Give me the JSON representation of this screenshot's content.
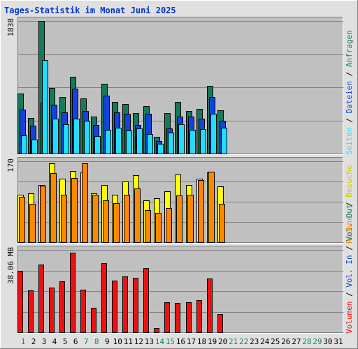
{
  "chart_data": [
    {
      "type": "bar",
      "title": "Tages-Statistik im Monat Juni 2025",
      "x": [
        "1",
        "2",
        "3",
        "4",
        "5",
        "6",
        "7",
        "8",
        "9",
        "10",
        "11",
        "12",
        "13",
        "14",
        "15",
        "16",
        "17",
        "18",
        "19",
        "20",
        "21",
        "22",
        "23",
        "24",
        "25",
        "26",
        "27",
        "28",
        "29",
        "30",
        "31"
      ],
      "weekend_days": [
        "1",
        "7",
        "8",
        "14",
        "15",
        "21",
        "22",
        "28",
        "29"
      ],
      "ylim": [
        0,
        1838
      ],
      "y_tick_label": "1838",
      "series": [
        {
          "name": "Anfragen",
          "color": "#157a5c",
          "values": [
            830,
            490,
            1838,
            910,
            780,
            1060,
            760,
            510,
            970,
            720,
            690,
            560,
            660,
            230,
            560,
            720,
            590,
            620,
            940,
            600,
            0,
            0,
            0,
            0,
            0,
            0,
            0,
            0,
            0,
            0,
            0
          ]
        },
        {
          "name": "Dateien",
          "color": "#1144dd",
          "values": [
            610,
            390,
            710,
            680,
            570,
            900,
            590,
            400,
            800,
            570,
            550,
            400,
            550,
            170,
            350,
            510,
            510,
            480,
            780,
            450,
            0,
            0,
            0,
            0,
            0,
            0,
            0,
            0,
            0,
            0,
            0
          ]
        },
        {
          "name": "Seiten",
          "color": "#22ddff",
          "values": [
            250,
            190,
            1300,
            480,
            410,
            480,
            450,
            240,
            330,
            360,
            320,
            350,
            270,
            140,
            290,
            410,
            330,
            340,
            550,
            360,
            0,
            0,
            0,
            0,
            0,
            0,
            0,
            0,
            0,
            0,
            0
          ]
        }
      ]
    },
    {
      "type": "bar",
      "ylim": [
        0,
        170
      ],
      "y_tick_label": "170",
      "series": [
        {
          "name": "Besuche",
          "color": "#ffff00",
          "values": [
            100,
            102,
            120,
            165,
            134,
            150,
            147,
            102,
            120,
            100,
            128,
            140,
            88,
            92,
            107,
            142,
            120,
            134,
            147,
            117
          ]
        },
        {
          "name": "Rechner",
          "color": "#ff8800",
          "values": [
            95,
            80,
            118,
            145,
            100,
            135,
            165,
            100,
            88,
            82,
            100,
            113,
            67,
            62,
            72,
            98,
            100,
            130,
            148,
            81
          ]
        }
      ]
    },
    {
      "type": "bar",
      "ylim": [
        0,
        38.06
      ],
      "y_tick_label": "38.06 MB",
      "series": [
        {
          "name": "Volumen",
          "color": "#ee1111",
          "values": [
            28.4,
            19.5,
            31.3,
            20.7,
            23.4,
            36.9,
            19.7,
            11.2,
            31.8,
            23.8,
            25.8,
            25.2,
            29.6,
            1.8,
            13.9,
            13.6,
            13.9,
            14.9,
            24.7,
            8.4,
            0,
            0,
            0,
            0,
            0,
            0,
            0,
            0,
            0,
            0,
            0
          ]
        }
      ]
    }
  ],
  "legend": {
    "sep": " / ",
    "top": [
      {
        "label": "Anfragen",
        "color": "#157a5c"
      },
      {
        "label": "Dateien",
        "color": "#1144dd"
      },
      {
        "label": "Seiten",
        "color": "#22ddff"
      }
    ],
    "middle": [
      {
        "label": "Besuche",
        "color": "#cccc00"
      },
      {
        "label": "Rechner",
        "color": "#ff8800"
      }
    ],
    "bottom": [
      {
        "label": "Vol. Out",
        "color": "#157a5c"
      },
      {
        "label": "Vol. In",
        "color": "#1144dd"
      },
      {
        "label": "Volumen",
        "color": "#ee1111"
      }
    ]
  },
  "colors": {
    "panel_bg": "#c0c0c0",
    "frame": "#e0e0e0",
    "title": "#0033cc",
    "weekday_label": "#000000",
    "weekend_label": "#158a5c",
    "gridline": "#808080"
  }
}
